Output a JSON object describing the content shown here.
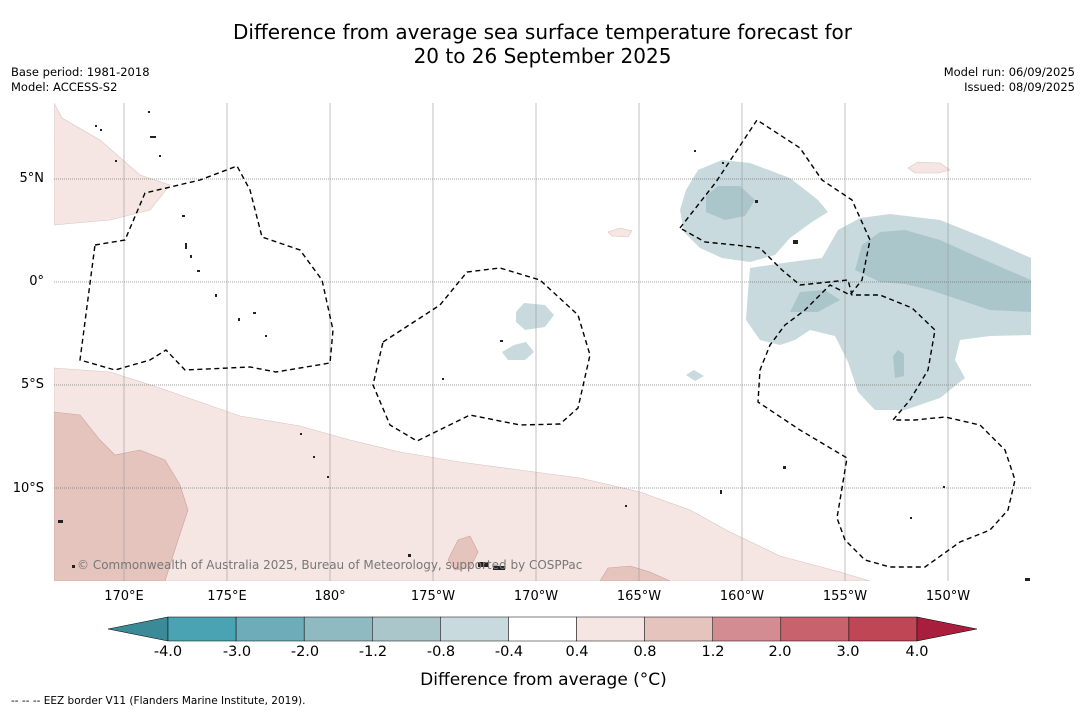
{
  "title_line1": "Difference from average sea surface temperature forecast for",
  "title_line2": "20 to 26 September 2025",
  "meta_left": {
    "base_period": "Base period: 1981-2018",
    "model": "Model: ACCESS-S2"
  },
  "meta_right": {
    "model_run": "Model run: 06/09/2025",
    "issued": "Issued: 08/09/2025"
  },
  "latitude_labels": [
    "5°N",
    "0°",
    "5°S",
    "10°S"
  ],
  "longitude_labels": [
    "170°E",
    "175°E",
    "180°",
    "175°W",
    "170°W",
    "165°W",
    "160°W",
    "155°W",
    "150°W"
  ],
  "copyright": "© Commonwealth of Australia 2025, Bureau of Meteorology, supported by COSPPac",
  "colorbar": {
    "title": "Difference from average (°C)",
    "ticks": [
      "-4.0",
      "-3.0",
      "-2.0",
      "-1.2",
      "-0.8",
      "-0.4",
      "0.4",
      "0.8",
      "1.2",
      "2.0",
      "3.0",
      "4.0"
    ],
    "colors": [
      "#3a8b97",
      "#4aa3b3",
      "#6eacba",
      "#8fbac2",
      "#abc6cb",
      "#c8dadd",
      "#ffffff",
      "#f5e6e4",
      "#e6c4be",
      "#d48c93",
      "#c8636d",
      "#be4655",
      "#a81e3c"
    ]
  },
  "footnote": "--  --  -- EEZ border V11 (Flanders Marine Institute, 2019)."
}
